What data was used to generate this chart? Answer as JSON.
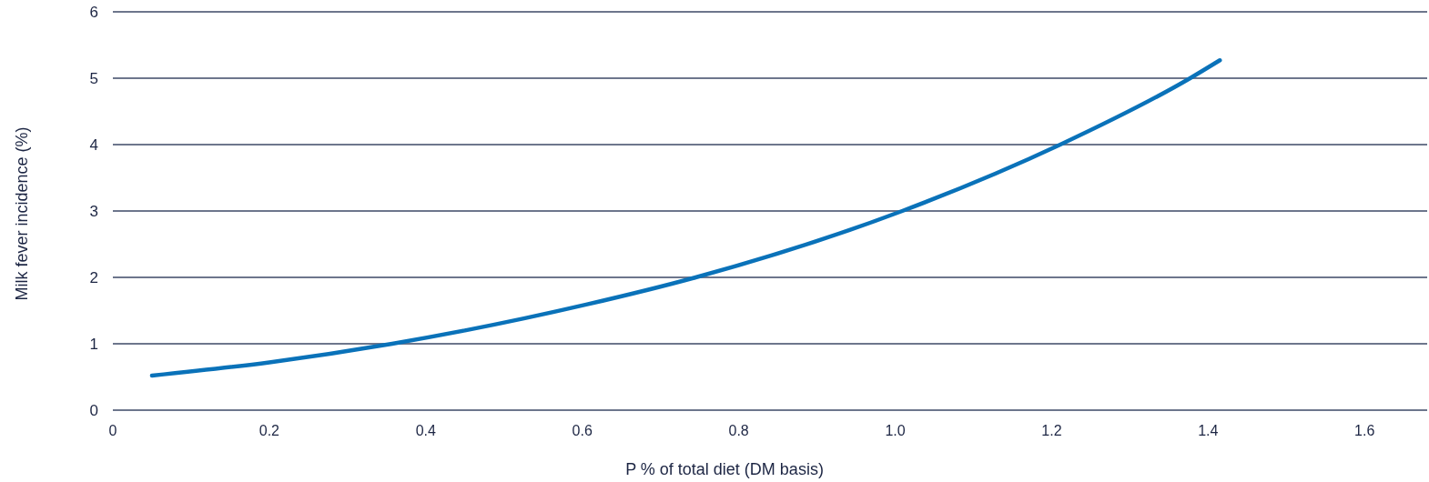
{
  "chart_data": {
    "type": "line",
    "xlabel": "P % of total diet (DM basis)",
    "ylabel": "Milk fever incidence (%)",
    "x": [
      0.05,
      0.2,
      0.357,
      0.45,
      0.605,
      0.745,
      1.009,
      1.211,
      1.377,
      1.415
    ],
    "series": [
      {
        "color": "#0a72b9",
        "values": [
          0.52,
          0.72,
          1.0,
          1.2,
          1.59,
          2.0,
          3.0,
          4.0,
          5.0,
          5.27
        ]
      }
    ],
    "xlim": [
      0,
      1.68
    ],
    "xticks": [
      0,
      0.2,
      0.4,
      0.6,
      0.8,
      {
        "value": 1,
        "label": "1.0"
      },
      1.2,
      1.4,
      1.6
    ],
    "ylim": [
      0,
      6
    ],
    "yticks": [
      0,
      1,
      2,
      3,
      4,
      5,
      6
    ],
    "grid": "y",
    "marker": "none",
    "line_style": "solid"
  }
}
